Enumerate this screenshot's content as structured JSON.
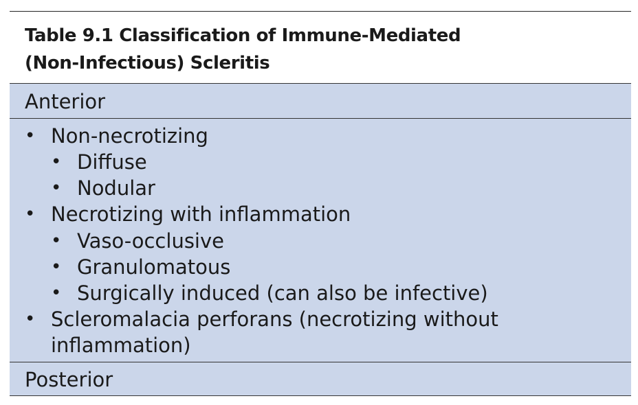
{
  "table": {
    "title_line1": "Table 9.1  Classification of Immune-Mediated",
    "title_line2": "(Non-Infectious) Scleritis",
    "sections": [
      {
        "heading": "Anterior",
        "items": [
          {
            "text": "Non-necrotizing",
            "subitems": [
              "Diffuse",
              "Nodular"
            ]
          },
          {
            "text": "Necrotizing with inflammation",
            "subitems": [
              "Vaso-occlusive",
              "Granulomatous",
              "Surgically induced (can also be infective)"
            ]
          },
          {
            "text_line1": "Scleromalacia perforans (necrotizing without",
            "text_line2": "inflammation)"
          }
        ]
      },
      {
        "heading": "Posterior"
      }
    ],
    "bullet_glyph": "•",
    "band_color": "#cbd6ea"
  }
}
